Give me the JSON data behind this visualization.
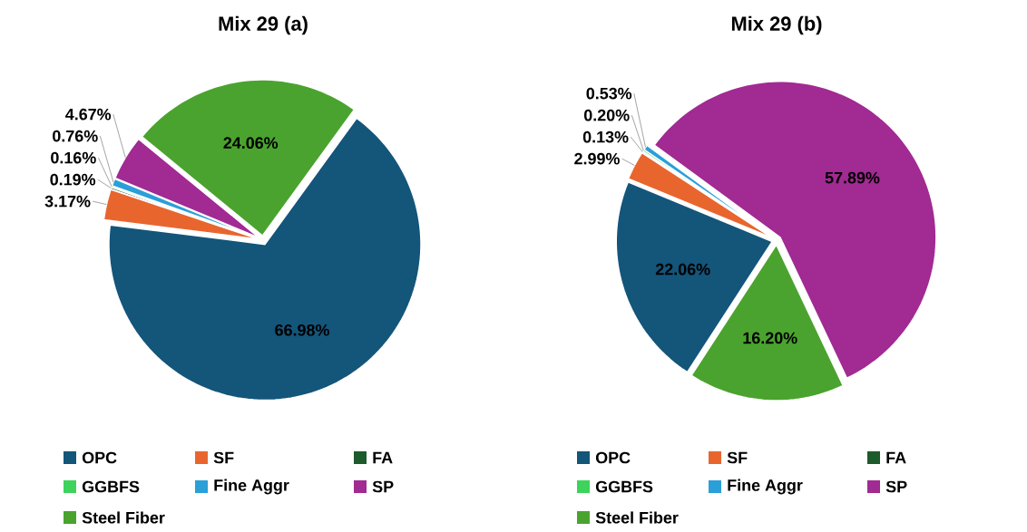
{
  "chart_data": [
    {
      "type": "pie",
      "title": "Mix 29 (a)",
      "categories": [
        "OPC",
        "SF",
        "FA",
        "GGBFS",
        "Fine Aggr",
        "SP",
        "Steel Fiber"
      ],
      "values": [
        66.98,
        3.17,
        0.19,
        0.16,
        0.76,
        4.67,
        24.06
      ],
      "value_labels": [
        "66.98%",
        "3.17%",
        "0.19%",
        "0.16%",
        "0.76%",
        "4.67%",
        "24.06%"
      ],
      "colors": [
        "#14557a",
        "#e8662e",
        "#1d5a2c",
        "#3ed35c",
        "#2a9fd8",
        "#a12a93",
        "#4aa32e"
      ],
      "legend": "bottom"
    },
    {
      "type": "pie",
      "title": "Mix 29 (b)",
      "categories": [
        "OPC",
        "SF",
        "FA",
        "GGBFS",
        "Fine Aggr",
        "SP",
        "Steel Fiber"
      ],
      "values": [
        22.06,
        2.99,
        0.13,
        0.2,
        0.53,
        57.89,
        16.2
      ],
      "value_labels": [
        "22.06%",
        "2.99%",
        "0.13%",
        "0.20%",
        "0.53%",
        "57.89%",
        "16.20%"
      ],
      "colors": [
        "#14557a",
        "#e8662e",
        "#1d5a2c",
        "#3ed35c",
        "#2a9fd8",
        "#a12a93",
        "#4aa32e"
      ],
      "legend": "bottom"
    }
  ]
}
